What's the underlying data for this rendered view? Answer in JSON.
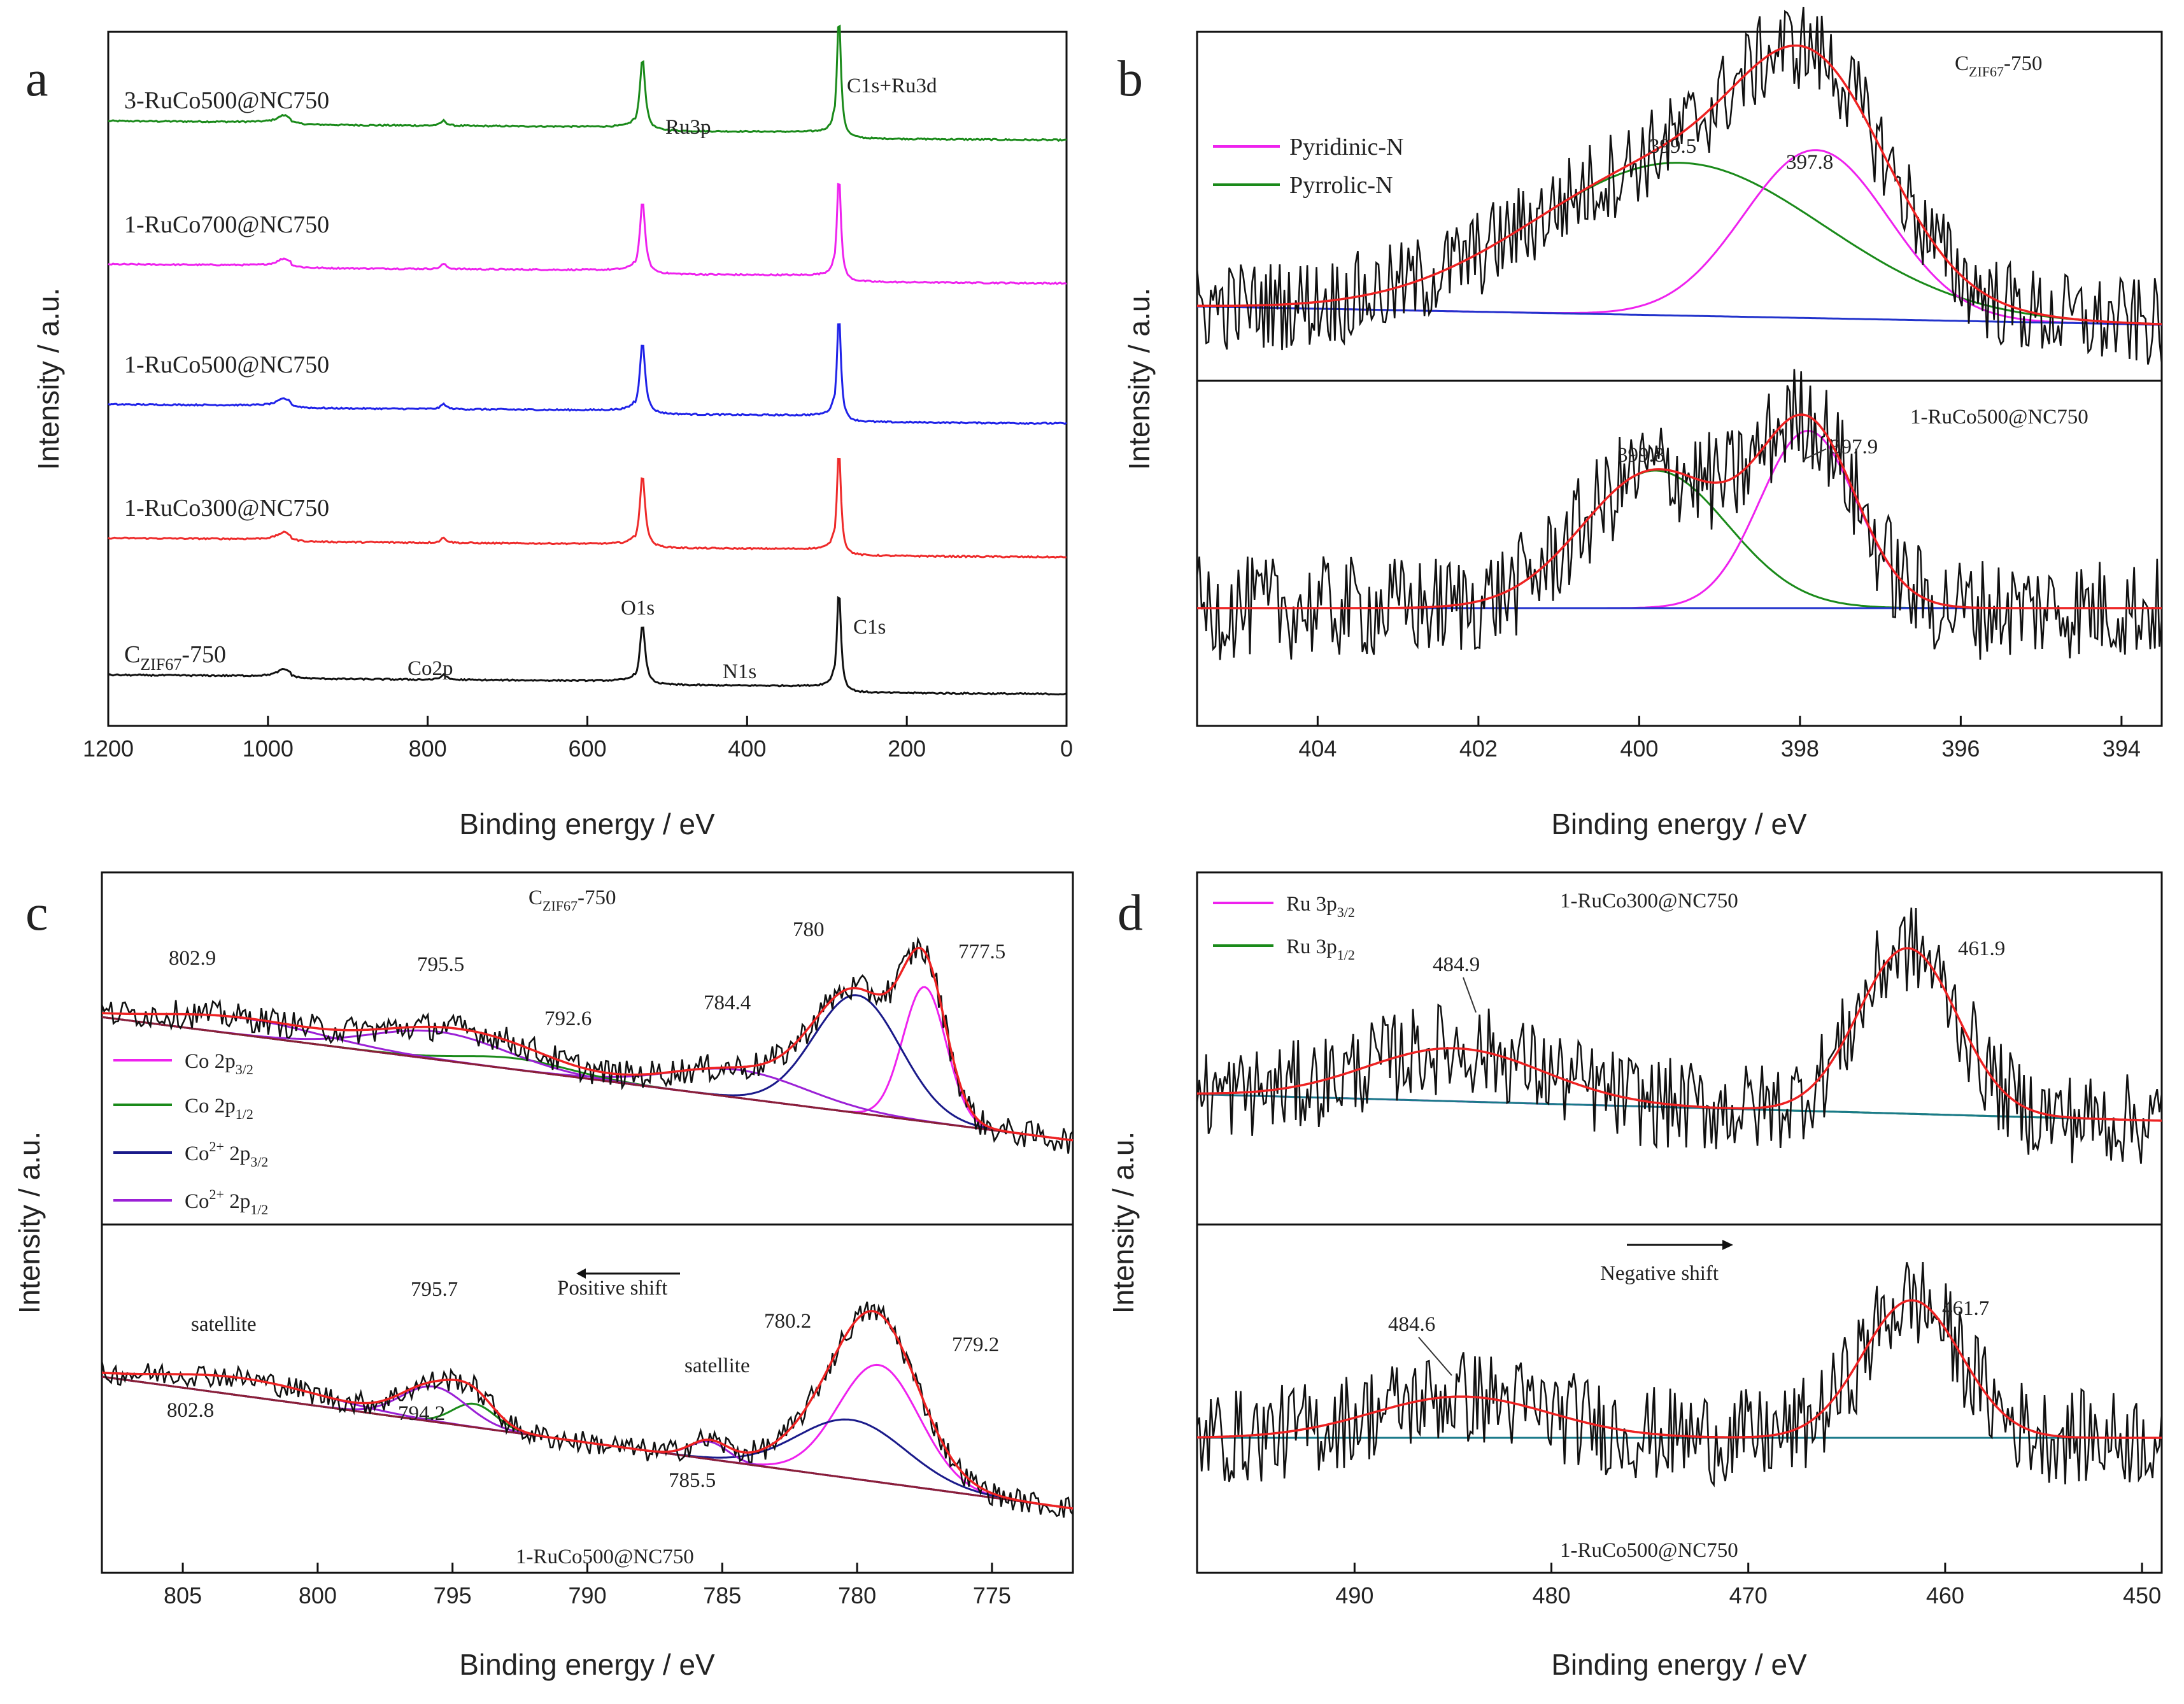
{
  "chart_data": [
    {
      "id": "a",
      "type": "line",
      "panel_letter": "a",
      "xlabel": "Binding energy / eV",
      "ylabel": "Intensity / a.u.",
      "xlim": [
        1200,
        0
      ],
      "ylim": [
        0,
        100
      ],
      "x_ticks": [
        "1200",
        "1000",
        "800",
        "600",
        "400",
        "200",
        "0"
      ],
      "series": [
        {
          "name": "3-RuCo500@NC750",
          "label": "3-RuCo500@NC750",
          "color": "#1a8a1a",
          "base": 84,
          "slope": 3.0
        },
        {
          "name": "1-RuCo700@NC750",
          "label": "1-RuCo700@NC750",
          "color": "#ee22ee",
          "base": 62,
          "slope": 3.0
        },
        {
          "name": "1-RuCo500@NC750",
          "label": "1-RuCo500@NC750",
          "color": "#1f22e8",
          "base": 42,
          "slope": 3.0
        },
        {
          "name": "1-RuCo300@NC750",
          "label": "1-RuCo300@NC750",
          "color": "#ee2a2a",
          "base": 21,
          "slope": 3.0
        },
        {
          "name": "CZIF67-750",
          "label_main": "C",
          "label_sub": "ZIF67",
          "label_tail": "-750",
          "color": "#111111",
          "base": 1,
          "slope": 2.5
        }
      ],
      "peaks": [
        {
          "name": "Co2p",
          "x": 980,
          "height": 1.2,
          "width": 10
        },
        {
          "name": "Co2p-2",
          "x": 780,
          "height": 0.9,
          "width": 4
        },
        {
          "name": "O1s",
          "x": 531,
          "height": 10,
          "width": 4
        },
        {
          "name": "C1s",
          "x": 285,
          "height": 14,
          "width": 3
        }
      ],
      "annotations": [
        {
          "text": "Ru3p",
          "x": 463
        },
        {
          "text": "C1s+Ru3d",
          "x": 240
        },
        {
          "text": "O1s",
          "x": 525
        },
        {
          "text": "Co2p",
          "x": 780
        },
        {
          "text": "N1s",
          "x": 400
        },
        {
          "text": "C1s",
          "x": 260
        }
      ]
    },
    {
      "id": "b",
      "type": "line",
      "panel_letter": "b",
      "xlabel": "Binding energy / eV",
      "ylabel": "Intensity / a.u.",
      "xlim": [
        405.5,
        393.5
      ],
      "x_ticks": [
        404,
        402,
        400,
        398,
        396,
        394
      ],
      "legend": [
        {
          "label": "Pyridinic-N",
          "color": "#ee22ee"
        },
        {
          "label": "Pyrrolic-N",
          "color": "#1a8a1a"
        }
      ],
      "subpanels": [
        {
          "title_main": "C",
          "title_sub": "ZIF67",
          "title_tail": "-750",
          "peaks": [
            {
              "name": "Pyrrolic-N",
              "center": 399.5,
              "amp": 50,
              "width": 1.8,
              "color": "#1a8a1a"
            },
            {
              "name": "Pyridinic-N",
              "center": 397.8,
              "amp": 55,
              "width": 0.9,
              "color": "#ee22ee"
            }
          ],
          "peak_labels": [
            "399.5",
            "397.8"
          ],
          "noise": 15,
          "background": {
            "left": 6,
            "right": 0
          }
        },
        {
          "title": "1-RuCo500@NC750",
          "peaks": [
            {
              "name": "Pyrrolic-N",
              "center": 399.8,
              "amp": 45,
              "width": 0.9,
              "color": "#1a8a1a"
            },
            {
              "name": "Pyridinic-N",
              "center": 397.9,
              "amp": 58,
              "width": 0.6,
              "color": "#ee22ee"
            }
          ],
          "peak_labels": [
            "399.8",
            "397.9"
          ],
          "noise": 17,
          "background": {
            "left": 0,
            "right": 0
          }
        }
      ]
    },
    {
      "id": "c",
      "type": "line",
      "panel_letter": "c",
      "xlabel": "Binding energy / eV",
      "ylabel": "Intensity / a.u.",
      "xlim": [
        808,
        772
      ],
      "x_ticks": [
        805,
        800,
        795,
        790,
        785,
        780,
        775
      ],
      "legend": [
        {
          "main": "Co 2p",
          "sub": "3/2",
          "color": "#ee22ee"
        },
        {
          "main": "Co 2p",
          "sub": "1/2",
          "color": "#1a8a1a"
        },
        {
          "main": "Co",
          "sup": "2+",
          "mid": " 2p",
          "sub": "3/2",
          "color": "#1a1a8a"
        },
        {
          "main": "Co",
          "sup": "2+",
          "mid": " 2p",
          "sub": "1/2",
          "color": "#9b20d6"
        }
      ],
      "subpanels": [
        {
          "title_main": "C",
          "title_sub": "ZIF67",
          "title_tail": "-750",
          "peaks": [
            {
              "name": "Co 2p3/2",
              "center": 777.5,
              "amp": 48,
              "width": 0.8,
              "color": "#ee22ee"
            },
            {
              "name": "Co2+ 2p3/2",
              "center": 780,
              "amp": 42,
              "width": 1.6,
              "color": "#1a1a8a"
            },
            {
              "name": "Co2+ 2p1/2",
              "center": 784.4,
              "amp": 10,
              "width": 2.5,
              "color": "#9b20d6"
            },
            {
              "name": "Co 2p1/2",
              "center": 792.6,
              "amp": 4,
              "width": 2.0,
              "color": "#1a8a1a"
            },
            {
              "name": "Co2+ 2p1/2 b",
              "center": 795.5,
              "amp": 10,
              "width": 2.5,
              "color": "#9b20d6"
            },
            {
              "name": "Co2+ 2p1/2 sat",
              "center": 802.9,
              "amp": 6,
              "width": 3.0,
              "color": "#9b20d6"
            }
          ],
          "peak_labels": [
            "802.9",
            "795.5",
            "792.6",
            "784.4",
            "780",
            "777.5"
          ],
          "noise": 5,
          "background": {
            "left": 62,
            "right": 18
          }
        },
        {
          "title": "1-RuCo500@NC750",
          "peaks": [
            {
              "name": "Co 2p3/2",
              "center": 779.2,
              "amp": 40,
              "width": 1.5,
              "color": "#ee22ee"
            },
            {
              "name": "Co2+ 2p3/2",
              "center": 780.2,
              "amp": 20,
              "width": 2.0,
              "color": "#1a1a8a"
            },
            {
              "name": "Co2+ 2p1/2",
              "center": 785.5,
              "amp": 6,
              "width": 0.7,
              "color": "#9b20d6"
            },
            {
              "name": "Co 2p1/2",
              "center": 794.2,
              "amp": 8,
              "width": 0.8,
              "color": "#1a8a1a"
            },
            {
              "name": "Co2+ 2p1/2 b",
              "center": 795.7,
              "amp": 12,
              "width": 1.2,
              "color": "#9b20d6"
            },
            {
              "name": "satellite",
              "center": 802.8,
              "amp": 6,
              "width": 3.0,
              "color": "#9b20d6"
            }
          ],
          "peak_labels": [
            "satellite",
            "802.8",
            "795.7",
            "794.2",
            "satellite",
            "785.5",
            "780.2",
            "779.2"
          ],
          "noise": 4,
          "background": {
            "left": 55,
            "right": 10
          }
        }
      ],
      "shift_label": "Positive shift"
    },
    {
      "id": "d",
      "type": "line",
      "panel_letter": "d",
      "xlabel": "Binding energy / eV",
      "ylabel": "Intensity / a.u.",
      "xlim": [
        498,
        449
      ],
      "x_ticks": [
        490,
        480,
        470,
        460,
        450
      ],
      "legend": [
        {
          "main": "Ru 3p",
          "sub": "3/2",
          "color": "#ee22ee"
        },
        {
          "main": "Ru 3p",
          "sub": "1/2",
          "color": "#1a8a1a"
        }
      ],
      "subpanels": [
        {
          "title": "1-RuCo300@NC750",
          "peaks": [
            {
              "name": "Ru 3p1/2",
              "center": 484.9,
              "amp": 16,
              "width": 4.5,
              "color": "#1a8a1a"
            },
            {
              "name": "Ru 3p3/2",
              "center": 461.9,
              "amp": 50,
              "width": 2.5,
              "color": "#ee22ee"
            }
          ],
          "peak_labels": [
            "484.9",
            "461.9"
          ],
          "noise": 14,
          "background": {
            "left": 8,
            "right": 0
          }
        },
        {
          "title": "1-RuCo500@NC750",
          "peaks": [
            {
              "name": "Ru 3p1/2",
              "center": 484.6,
              "amp": 12,
              "width": 4.5,
              "color": "#1a8a1a"
            },
            {
              "name": "Ru 3p3/2",
              "center": 461.7,
              "amp": 40,
              "width": 2.5,
              "color": "#ee22ee"
            }
          ],
          "peak_labels": [
            "484.6",
            "461.7"
          ],
          "noise": 14,
          "background": {
            "left": 0,
            "right": 0
          }
        }
      ],
      "shift_label": "Negative shift"
    }
  ]
}
